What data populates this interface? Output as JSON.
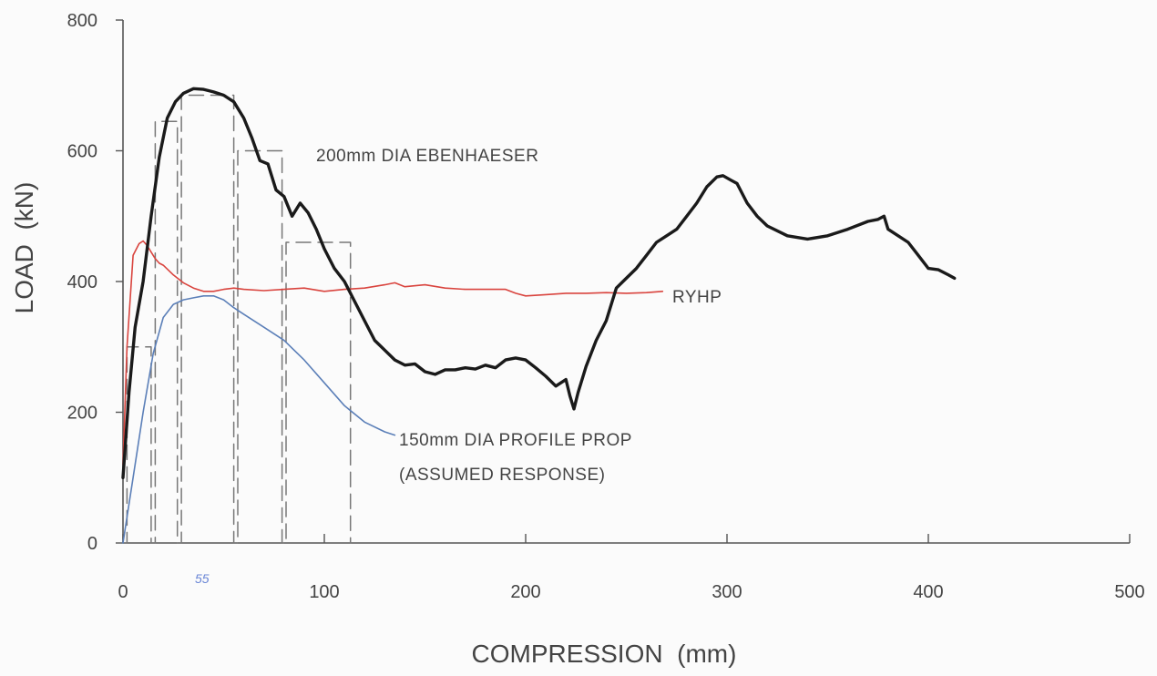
{
  "chart_data": {
    "type": "line",
    "title": "",
    "xlabel": "COMPRESSION  (mm)",
    "ylabel": "LOAD  (kN)",
    "xlim": [
      0,
      500
    ],
    "ylim": [
      0,
      800
    ],
    "x_ticks": [
      "0",
      "100",
      "200",
      "300",
      "400",
      "500"
    ],
    "y_ticks": [
      "0",
      "200",
      "400",
      "600",
      "800"
    ],
    "grid": false,
    "legend": "none",
    "series": [
      {
        "name": "200mm DIA EBENHAESER",
        "color": "#1a1a1a",
        "style": "solid-thick",
        "x": [
          0,
          3,
          6,
          10,
          14,
          18,
          22,
          26,
          30,
          35,
          40,
          45,
          50,
          55,
          60,
          64,
          68,
          72,
          76,
          80,
          84,
          88,
          92,
          96,
          100,
          105,
          110,
          115,
          120,
          125,
          130,
          135,
          140,
          145,
          150,
          155,
          160,
          165,
          170,
          175,
          180,
          185,
          190,
          195,
          200,
          205,
          210,
          215,
          220,
          222,
          224,
          226,
          230,
          235,
          240,
          245,
          250,
          255,
          260,
          265,
          270,
          275,
          280,
          285,
          290,
          295,
          298,
          302,
          305,
          310,
          315,
          320,
          330,
          340,
          350,
          360,
          370,
          375,
          378,
          380,
          385,
          390,
          395,
          400,
          405,
          410,
          413
        ],
        "y": [
          100,
          230,
          330,
          400,
          500,
          590,
          650,
          675,
          688,
          695,
          694,
          690,
          685,
          675,
          650,
          620,
          585,
          580,
          540,
          530,
          500,
          520,
          505,
          480,
          450,
          420,
          400,
          370,
          340,
          310,
          295,
          280,
          272,
          274,
          262,
          258,
          265,
          265,
          268,
          266,
          272,
          268,
          280,
          283,
          280,
          268,
          255,
          240,
          250,
          225,
          205,
          230,
          270,
          310,
          340,
          390,
          405,
          420,
          440,
          460,
          470,
          480,
          500,
          520,
          545,
          560,
          562,
          555,
          550,
          520,
          500,
          485,
          470,
          465,
          470,
          480,
          492,
          495,
          500,
          480,
          470,
          460,
          440,
          420,
          418,
          410,
          405
        ]
      },
      {
        "name": "RYHP",
        "color": "#d9443e",
        "style": "solid-thin",
        "x": [
          0,
          2,
          5,
          8,
          10,
          12,
          14,
          16,
          18,
          20,
          25,
          30,
          35,
          40,
          45,
          50,
          55,
          60,
          70,
          80,
          90,
          100,
          110,
          120,
          130,
          135,
          140,
          150,
          160,
          170,
          180,
          190,
          195,
          200,
          210,
          220,
          230,
          240,
          250,
          260,
          268
        ],
        "y": [
          120,
          300,
          440,
          458,
          462,
          455,
          445,
          435,
          428,
          425,
          410,
          398,
          390,
          385,
          385,
          388,
          390,
          388,
          386,
          388,
          390,
          385,
          388,
          390,
          395,
          398,
          392,
          395,
          390,
          388,
          388,
          388,
          382,
          378,
          380,
          382,
          382,
          383,
          382,
          383,
          385
        ]
      },
      {
        "name": "150mm DIA PROFILE PROP",
        "color": "#5b7fb8",
        "style": "solid-thin",
        "x": [
          0,
          5,
          10,
          15,
          20,
          25,
          30,
          35,
          40,
          45,
          50,
          55,
          60,
          70,
          80,
          90,
          100,
          110,
          120,
          130,
          135
        ],
        "y": [
          0,
          100,
          200,
          290,
          345,
          365,
          372,
          375,
          378,
          378,
          372,
          360,
          350,
          330,
          310,
          280,
          245,
          210,
          185,
          170,
          165
        ]
      },
      {
        "name": "",
        "color": "#777777",
        "style": "dashed-step",
        "x": [
          0,
          2,
          2,
          14,
          14,
          16,
          16,
          27,
          27,
          29,
          29,
          55,
          55,
          57,
          57,
          79,
          79,
          81,
          81,
          113,
          113
        ],
        "y": [
          0,
          0,
          300,
          300,
          0,
          0,
          645,
          645,
          0,
          0,
          685,
          685,
          0,
          0,
          600,
          600,
          0,
          0,
          460,
          460,
          0
        ]
      }
    ],
    "annotations": {
      "ebenhaeser": "200mm DIA EBENHAESER",
      "ryhp": "RYHP",
      "profile_line1": "150mm DIA PROFILE PROP",
      "profile_line2": "(ASSUMED RESPONSE)",
      "handwritten_mark": "55"
    }
  }
}
